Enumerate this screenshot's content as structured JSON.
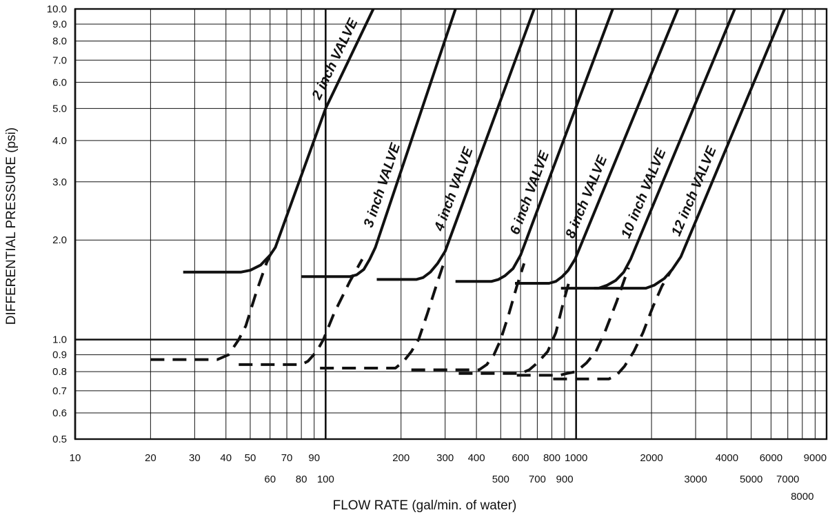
{
  "chart_data": {
    "type": "line",
    "scale": "log-log",
    "grid": true,
    "xlabel": "FLOW RATE (gal/min. of water)",
    "ylabel": "DIFFERENTIAL PRESSURE (psi)",
    "xlim": [
      10,
      10000
    ],
    "ylim": [
      0.5,
      10.0
    ],
    "x_ticks_upper": [
      "10",
      "20",
      "30",
      "40",
      "50",
      "70",
      "90",
      "200",
      "300",
      "400",
      "600",
      "800",
      "1000",
      "2000",
      "4000",
      "6000",
      "9000"
    ],
    "x_ticks_lower": [
      "60",
      "80",
      "100",
      "500",
      "700",
      "900",
      "3000",
      "5000",
      "7000",
      "8000"
    ],
    "y_ticks": [
      "0.5",
      "0.6",
      "0.7",
      "0.8",
      "0.9",
      "1.0",
      "2.0",
      "3.0",
      "4.0",
      "5.0",
      "6.0",
      "7.0",
      "8.0",
      "9.0",
      "10.0"
    ],
    "series": [
      {
        "name": "2 inch VALVE",
        "solid": [
          [
            27,
            1.6
          ],
          [
            46,
            1.6
          ],
          [
            50,
            1.62
          ],
          [
            55,
            1.68
          ],
          [
            60,
            1.8
          ],
          [
            63,
            1.9
          ],
          [
            100,
            5.0
          ],
          [
            155,
            10.0
          ]
        ],
        "dashed": [
          [
            20,
            0.87
          ],
          [
            37,
            0.87
          ],
          [
            41,
            0.9
          ],
          [
            45,
            1.0
          ],
          [
            48,
            1.1
          ],
          [
            53,
            1.4
          ],
          [
            58,
            1.7
          ],
          [
            60,
            1.8
          ]
        ]
      },
      {
        "name": "3 inch VALVE",
        "solid": [
          [
            80,
            1.55
          ],
          [
            125,
            1.55
          ],
          [
            133,
            1.57
          ],
          [
            142,
            1.63
          ],
          [
            150,
            1.75
          ],
          [
            158,
            1.9
          ],
          [
            330,
            10.0
          ]
        ],
        "dashed": [
          [
            45,
            0.84
          ],
          [
            80,
            0.84
          ],
          [
            85,
            0.86
          ],
          [
            92,
            0.92
          ],
          [
            98,
            1.0
          ],
          [
            108,
            1.2
          ],
          [
            125,
            1.5
          ],
          [
            140,
            1.75
          ]
        ]
      },
      {
        "name": "4 inch VALVE",
        "solid": [
          [
            160,
            1.52
          ],
          [
            230,
            1.52
          ],
          [
            245,
            1.54
          ],
          [
            262,
            1.6
          ],
          [
            280,
            1.7
          ],
          [
            300,
            1.85
          ],
          [
            680,
            10.0
          ]
        ],
        "dashed": [
          [
            95,
            0.82
          ],
          [
            190,
            0.82
          ],
          [
            205,
            0.86
          ],
          [
            220,
            0.92
          ],
          [
            235,
            1.0
          ],
          [
            255,
            1.2
          ],
          [
            280,
            1.5
          ],
          [
            300,
            1.75
          ]
        ]
      },
      {
        "name": "6 inch VALVE",
        "solid": [
          [
            330,
            1.5
          ],
          [
            460,
            1.5
          ],
          [
            490,
            1.52
          ],
          [
            520,
            1.56
          ],
          [
            560,
            1.64
          ],
          [
            600,
            1.8
          ],
          [
            1400,
            10.0
          ]
        ],
        "dashed": [
          [
            220,
            0.81
          ],
          [
            410,
            0.81
          ],
          [
            440,
            0.84
          ],
          [
            470,
            0.9
          ],
          [
            500,
            1.0
          ],
          [
            540,
            1.2
          ],
          [
            580,
            1.45
          ],
          [
            620,
            1.7
          ]
        ]
      },
      {
        "name": "8 inch VALVE",
        "solid": [
          [
            570,
            1.48
          ],
          [
            780,
            1.48
          ],
          [
            830,
            1.5
          ],
          [
            880,
            1.55
          ],
          [
            930,
            1.62
          ],
          [
            990,
            1.75
          ],
          [
            2550,
            10.0
          ]
        ],
        "dashed": [
          [
            340,
            0.79
          ],
          [
            600,
            0.79
          ],
          [
            650,
            0.81
          ],
          [
            700,
            0.85
          ],
          [
            770,
            0.92
          ],
          [
            830,
            1.05
          ],
          [
            890,
            1.3
          ],
          [
            950,
            1.55
          ]
        ]
      },
      {
        "name": "10 inch VALVE",
        "solid": [
          [
            870,
            1.43
          ],
          [
            1230,
            1.43
          ],
          [
            1330,
            1.46
          ],
          [
            1440,
            1.51
          ],
          [
            1550,
            1.6
          ],
          [
            1650,
            1.75
          ],
          [
            4300,
            10.0
          ]
        ],
        "dashed": [
          [
            580,
            0.78
          ],
          [
            860,
            0.78
          ],
          [
            920,
            0.79
          ],
          [
            1000,
            0.8
          ],
          [
            1100,
            0.85
          ],
          [
            1200,
            0.92
          ],
          [
            1300,
            1.05
          ],
          [
            1450,
            1.3
          ],
          [
            1620,
            1.65
          ]
        ]
      },
      {
        "name": "12 inch VALVE",
        "solid": [
          [
            1180,
            1.43
          ],
          [
            1900,
            1.43
          ],
          [
            2050,
            1.46
          ],
          [
            2250,
            1.53
          ],
          [
            2420,
            1.63
          ],
          [
            2620,
            1.78
          ],
          [
            6800,
            10.0
          ]
        ],
        "dashed": [
          [
            810,
            0.76
          ],
          [
            1350,
            0.76
          ],
          [
            1450,
            0.78
          ],
          [
            1560,
            0.83
          ],
          [
            1700,
            0.92
          ],
          [
            1850,
            1.05
          ],
          [
            2020,
            1.25
          ],
          [
            2200,
            1.45
          ],
          [
            2400,
            1.62
          ]
        ]
      }
    ]
  }
}
